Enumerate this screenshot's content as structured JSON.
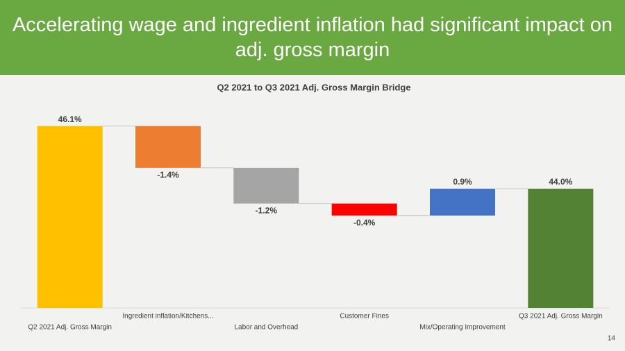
{
  "header": {
    "title": "Accelerating wage and ingredient inflation had significant impact on adj. gross margin"
  },
  "page_number": "14",
  "chart_data": {
    "type": "waterfall",
    "title": "Q2 2021 to Q3 2021 Adj. Gross Margin Bridge",
    "categories": [
      "Q2 2021 Adj. Gross Margin",
      "Ingredient inflation/Kitchens...",
      "Labor and Overhead",
      "Customer Fines",
      "Mix/Operating Improvement",
      "Q3 2021 Adj. Gross Margin"
    ],
    "values": [
      46.1,
      -1.4,
      -1.2,
      -0.4,
      0.9,
      44.0
    ],
    "value_labels": [
      "46.1%",
      "-1.4%",
      "-1.2%",
      "-0.4%",
      "0.9%",
      "44.0%"
    ],
    "is_total": [
      true,
      false,
      false,
      false,
      false,
      true
    ],
    "colors": [
      "#FFC000",
      "#ED7D31",
      "#A5A5A5",
      "#FF0000",
      "#4472C4",
      "#548235"
    ],
    "ylim": [
      40,
      47
    ]
  }
}
